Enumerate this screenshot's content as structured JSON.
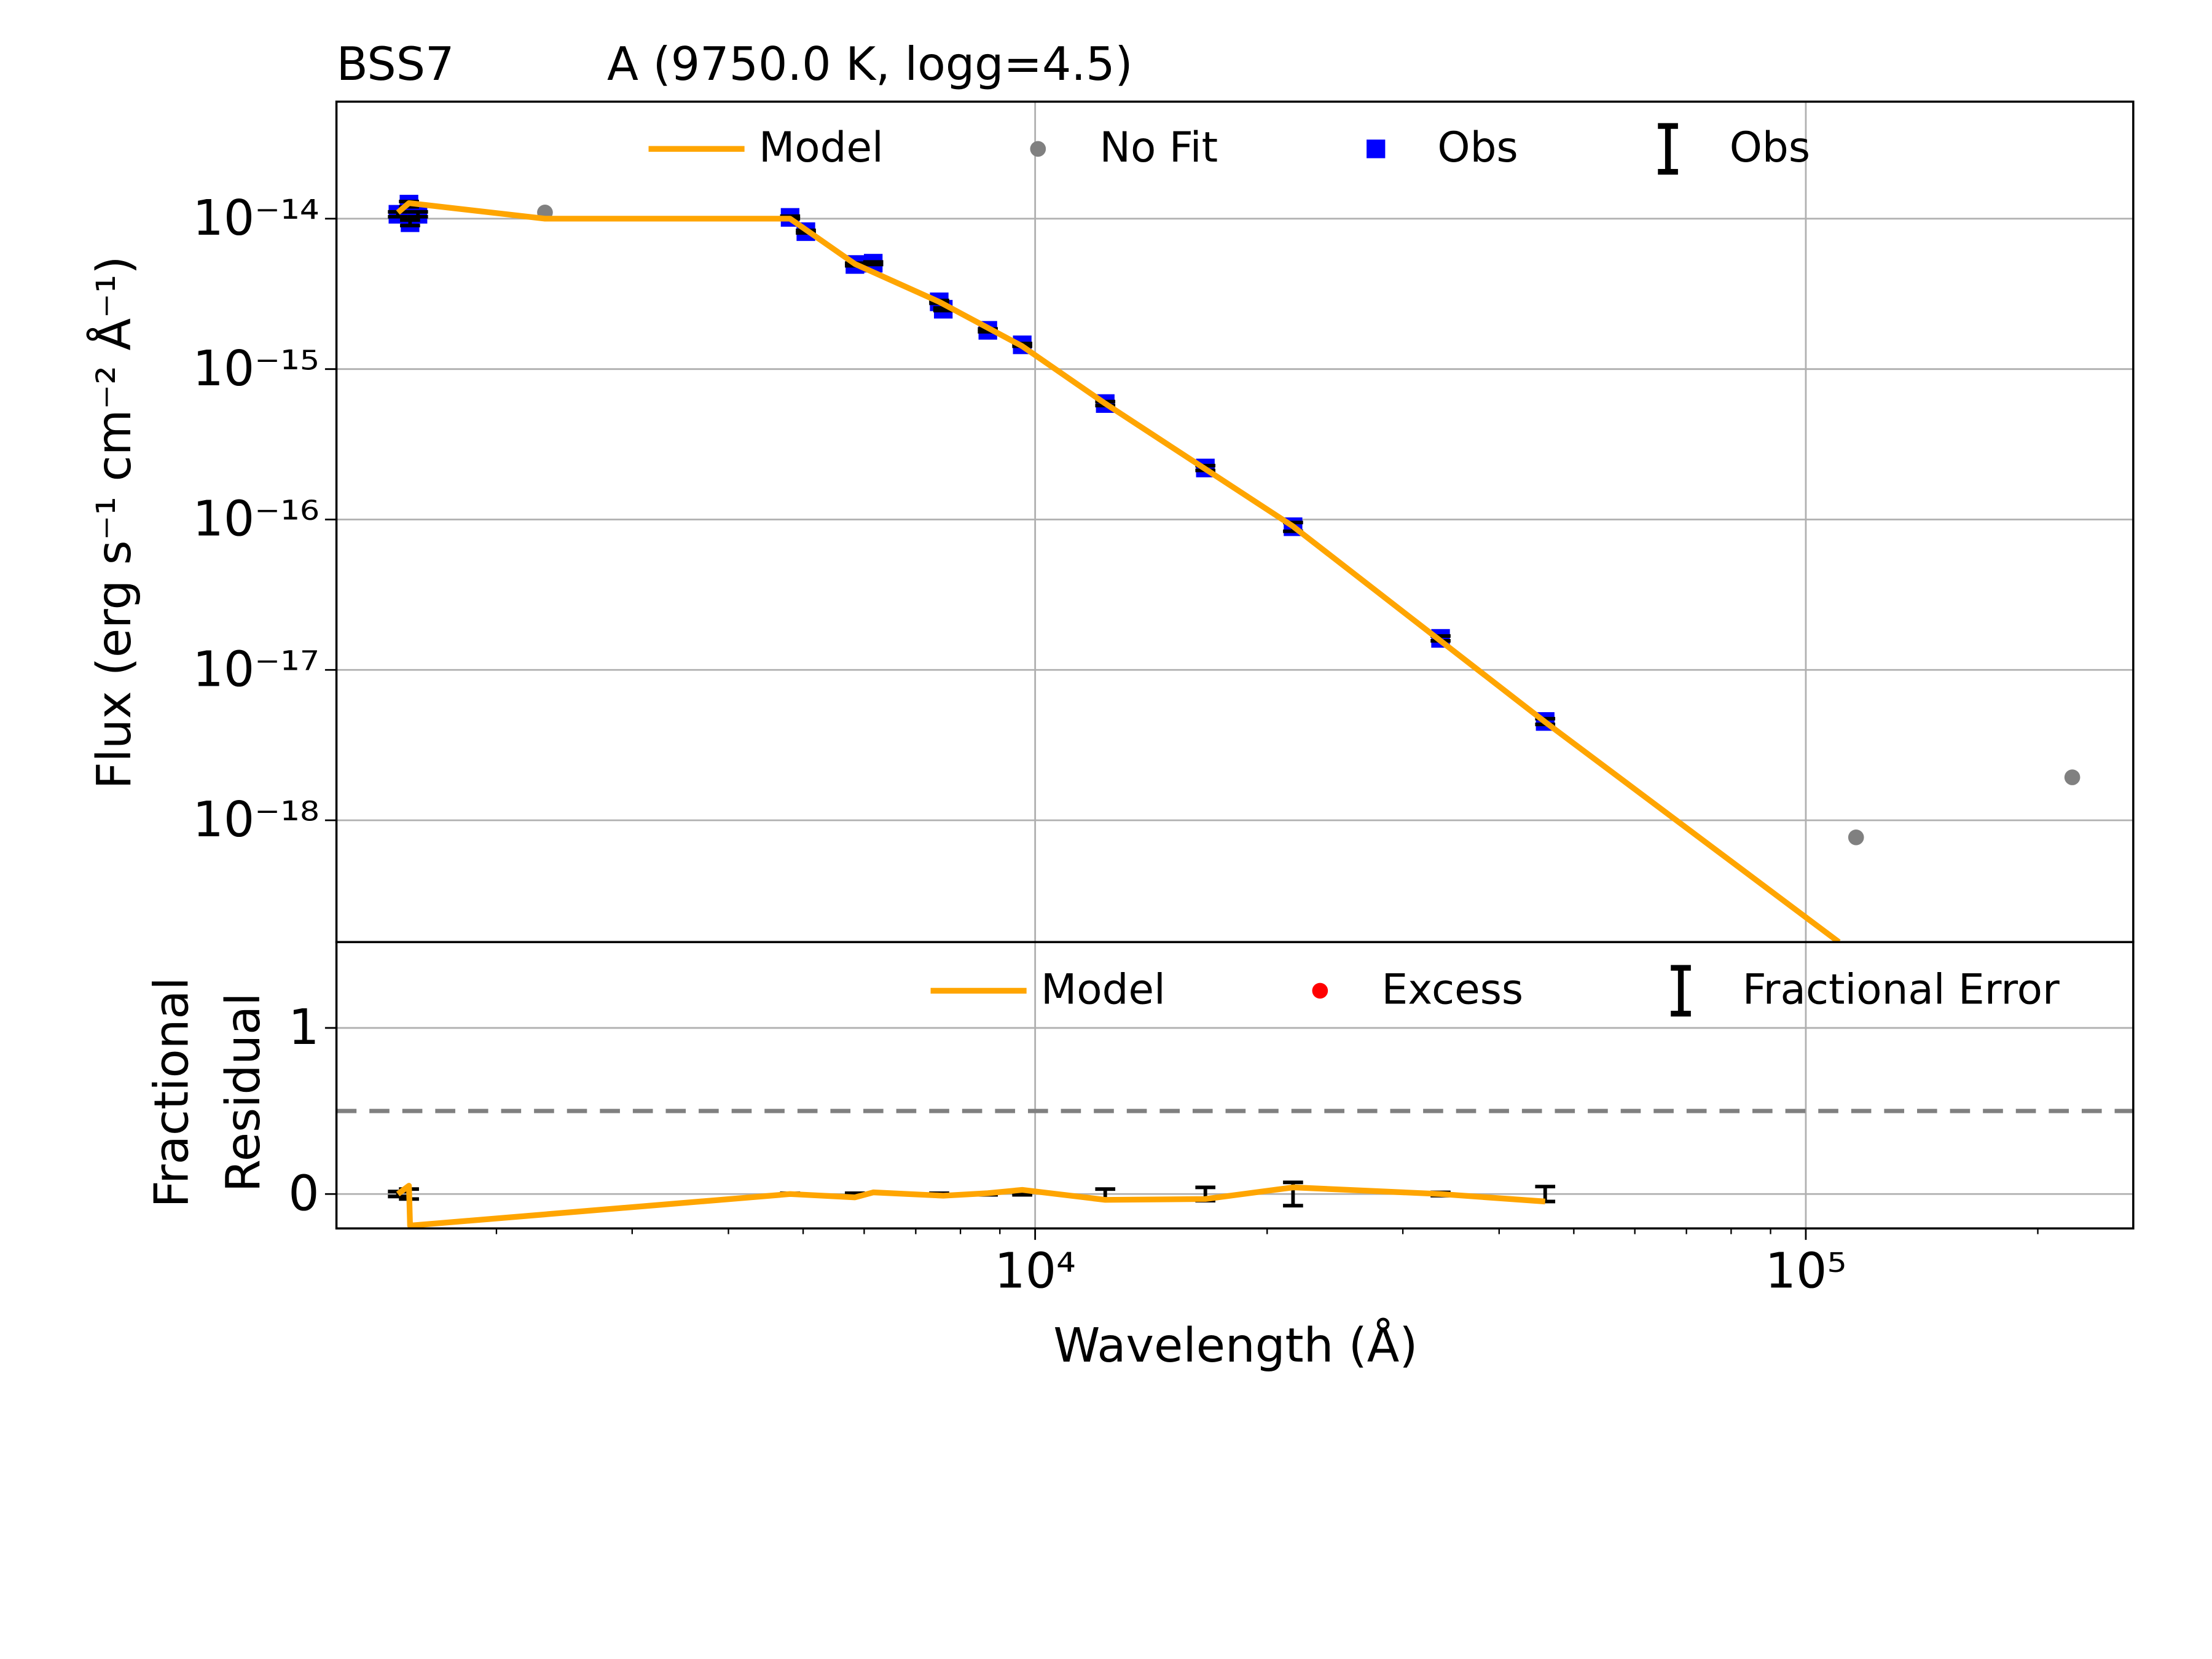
{
  "chart_data": [
    {
      "type": "line",
      "title": "BSS7",
      "subtitle": "A (9750.0 K, logg=4.5)",
      "ylabel": "Flux (erg s⁻¹ cm⁻² Å⁻¹)",
      "log_x": true,
      "log_y": true,
      "grid": true,
      "xlim": [
        1240,
        266000
      ],
      "ylim": [
        1.55e-19,
        6e-14
      ],
      "xticks": [
        10000,
        100000
      ],
      "xtick_labels": [
        "10⁴",
        "10⁵"
      ],
      "yticks": [
        {
          "value": 1e-18,
          "label": "10⁻¹⁸"
        },
        {
          "value": 1e-17,
          "label": "10⁻¹⁷"
        },
        {
          "value": 1e-16,
          "label": "10⁻¹⁶"
        },
        {
          "value": 1e-15,
          "label": "10⁻¹⁵"
        },
        {
          "value": 1e-14,
          "label": "10⁻¹⁴"
        }
      ],
      "series": [
        {
          "name": "Model",
          "marker": "line",
          "color": "#ffa500",
          "x": [
            1490,
            1540,
            2312,
            4809,
            5837,
            7508,
            9622,
            12330,
            21610,
            45900,
            110400
          ],
          "values": [
            1.1e-14,
            1.27e-14,
            1e-14,
            1e-14,
            5e-15,
            2.8e-15,
            1.42e-15,
            5.9e-16,
            9e-17,
            4.5e-18,
            1.55e-19
          ]
        },
        {
          "name": "No Fit",
          "marker": "circle",
          "color": "#808080",
          "x": [
            2312,
            116200,
            221700
          ],
          "values": [
            1.1e-14,
            7.7e-19,
            1.93e-18
          ]
        },
        {
          "name": "Obs",
          "marker": "square",
          "color": "#0000ff",
          "x": [
            1490,
            1540,
            1545,
            1582,
            4809,
            5041,
            5837,
            6165,
            7508,
            7600,
            8682,
            9622,
            12330,
            16630,
            21610,
            33580,
            45900
          ],
          "values": [
            1.07e-14,
            1.25e-14,
            9.4e-15,
            1.07e-14,
            1.02e-14,
            8.2e-15,
            4.96e-15,
            5.06e-15,
            2.8e-15,
            2.5e-15,
            1.81e-15,
            1.45e-15,
            5.9e-16,
            2.2e-16,
            8.95e-17,
            1.62e-17,
            4.54e-18
          ]
        },
        {
          "name": "Obs",
          "marker": "errorbar",
          "color": "#000000",
          "errors": [
            4e-16,
            5e-16,
            4e-16,
            4e-16,
            2e-16,
            1.6e-16,
            1e-16,
            1e-16,
            6e-17,
            5e-17,
            4e-17,
            3e-17,
            1.8e-17,
            8e-18,
            6e-18,
            6e-19,
            2e-19
          ]
        }
      ]
    },
    {
      "type": "line",
      "ylabel": [
        "Fractional",
        "Residual"
      ],
      "xlabel": "Wavelength (Å)",
      "log_x": true,
      "grid": true,
      "xlim": [
        1240,
        266000
      ],
      "ylim": [
        -0.207,
        1.517
      ],
      "xticks": [
        10000,
        100000
      ],
      "xtick_labels": [
        "10⁴",
        "10⁵"
      ],
      "xminorticks": [
        2000,
        3000,
        4000,
        5000,
        6000,
        7000,
        8000,
        9000,
        20000,
        30000,
        40000,
        50000,
        60000,
        70000,
        80000,
        90000,
        200000
      ],
      "yticks": [
        0,
        1
      ],
      "hline": 0.5,
      "hline_color": "#808080",
      "series": [
        {
          "name": "Model",
          "marker": "line",
          "color": "#ffa500",
          "x": [
            1490,
            1540,
            1545,
            4809,
            5837,
            6165,
            7600,
            8682,
            9622,
            12330,
            16630,
            21610,
            33580,
            45900
          ],
          "values": [
            0,
            0.05,
            -0.19,
            0,
            -0.02,
            0.01,
            -0.01,
            0.005,
            0.025,
            -0.035,
            -0.03,
            0.04,
            0,
            -0.045
          ]
        },
        {
          "name": "Excess",
          "marker": "circle",
          "color": "#ff0000",
          "x": [],
          "values": []
        },
        {
          "name": "Fractional Error",
          "marker": "errorbar",
          "color": "#000000",
          "x": [
            1490,
            1540,
            4809,
            5837,
            7508,
            8682,
            9622,
            12330,
            16630,
            21610,
            33580,
            45900
          ],
          "values": [
            0,
            0,
            0,
            0,
            0,
            0,
            0,
            0,
            0,
            0,
            0,
            0
          ],
          "errors": [
            0.015,
            0.03,
            0.005,
            0.005,
            0.005,
            0.005,
            0.005,
            0.03,
            0.04,
            0.07,
            0.01,
            0.045
          ]
        }
      ]
    }
  ]
}
